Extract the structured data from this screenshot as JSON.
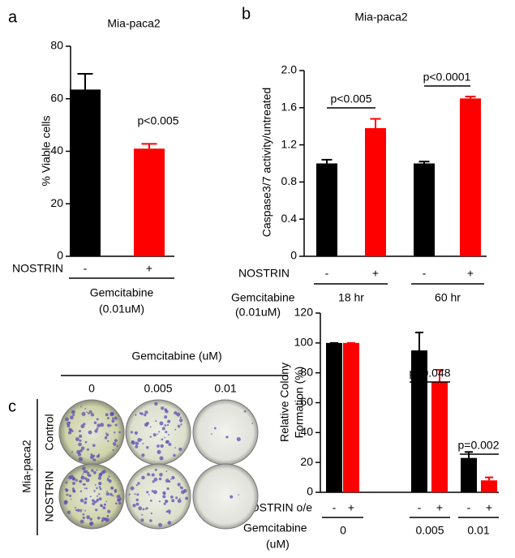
{
  "chart_data": [
    {
      "type": "bar",
      "panel_label": "a",
      "title": "Mia-paca2",
      "y_label": "% Viable cells",
      "row_label": "NOSTRIN",
      "categories": [
        "-",
        "+"
      ],
      "values": [
        63.5,
        41
      ],
      "errors": [
        6,
        1.8
      ],
      "colors": [
        "#000000",
        "#ff0000"
      ],
      "ylim": [
        0,
        80
      ],
      "yticks": [
        0,
        20,
        40,
        60,
        80
      ],
      "annotations": [
        "p<0.005"
      ],
      "treatment_label": [
        "Gemcitabine",
        "(0.01uM)"
      ]
    },
    {
      "type": "bar",
      "panel_label": "b",
      "title": "Mia-paca2",
      "y_label": "Caspase3/7 activity/untreated",
      "row_label": "NOSTRIN",
      "categories": [
        "-",
        "+",
        "-",
        "+"
      ],
      "groups": [
        "18 hr",
        "60 hr"
      ],
      "values": [
        1.0,
        1.38,
        1.0,
        1.7
      ],
      "errors": [
        0.04,
        0.1,
        0.02,
        0.02
      ],
      "colors": [
        "#000000",
        "#ff0000",
        "#000000",
        "#ff0000"
      ],
      "ylim": [
        0,
        2
      ],
      "yticks": [
        0,
        0.4,
        0.8,
        1.2,
        1.6,
        {
          "value": 2,
          "label": "2.0"
        }
      ],
      "annotations": [
        "p<0.005",
        "p<0.0001"
      ],
      "treatment_label": [
        "Gemcitabine",
        "(0.01uM)"
      ]
    },
    {
      "type": "bar",
      "y_label": [
        "Relative Colony",
        "Formation (%)"
      ],
      "row_label": "NOSTRIN o/e",
      "categories": [
        "-",
        "+",
        "-",
        "+",
        "-",
        "+"
      ],
      "groups": [
        "0",
        "0.005",
        "0.01"
      ],
      "values": [
        100,
        100,
        95,
        74,
        23,
        8
      ],
      "errors": [
        0,
        0,
        12,
        8,
        4,
        2
      ],
      "colors": [
        "#000000",
        "#ff0000",
        "#000000",
        "#ff0000",
        "#000000",
        "#ff0000"
      ],
      "ylim": [
        0,
        120
      ],
      "yticks": [
        0,
        20,
        40,
        60,
        80,
        100,
        120
      ],
      "annotations": [
        "p=0.048",
        "p=0.002"
      ],
      "treatment_label": [
        "Gemcitabine",
        "(uM)"
      ]
    }
  ],
  "image_panel": {
    "panel_label": "c",
    "title": "Gemcitabine (uM)",
    "columns": [
      "0",
      "0.005",
      "0.01"
    ],
    "rows": [
      "Control",
      "NOSTRIN"
    ],
    "cell_line": "Mia-paca2"
  }
}
